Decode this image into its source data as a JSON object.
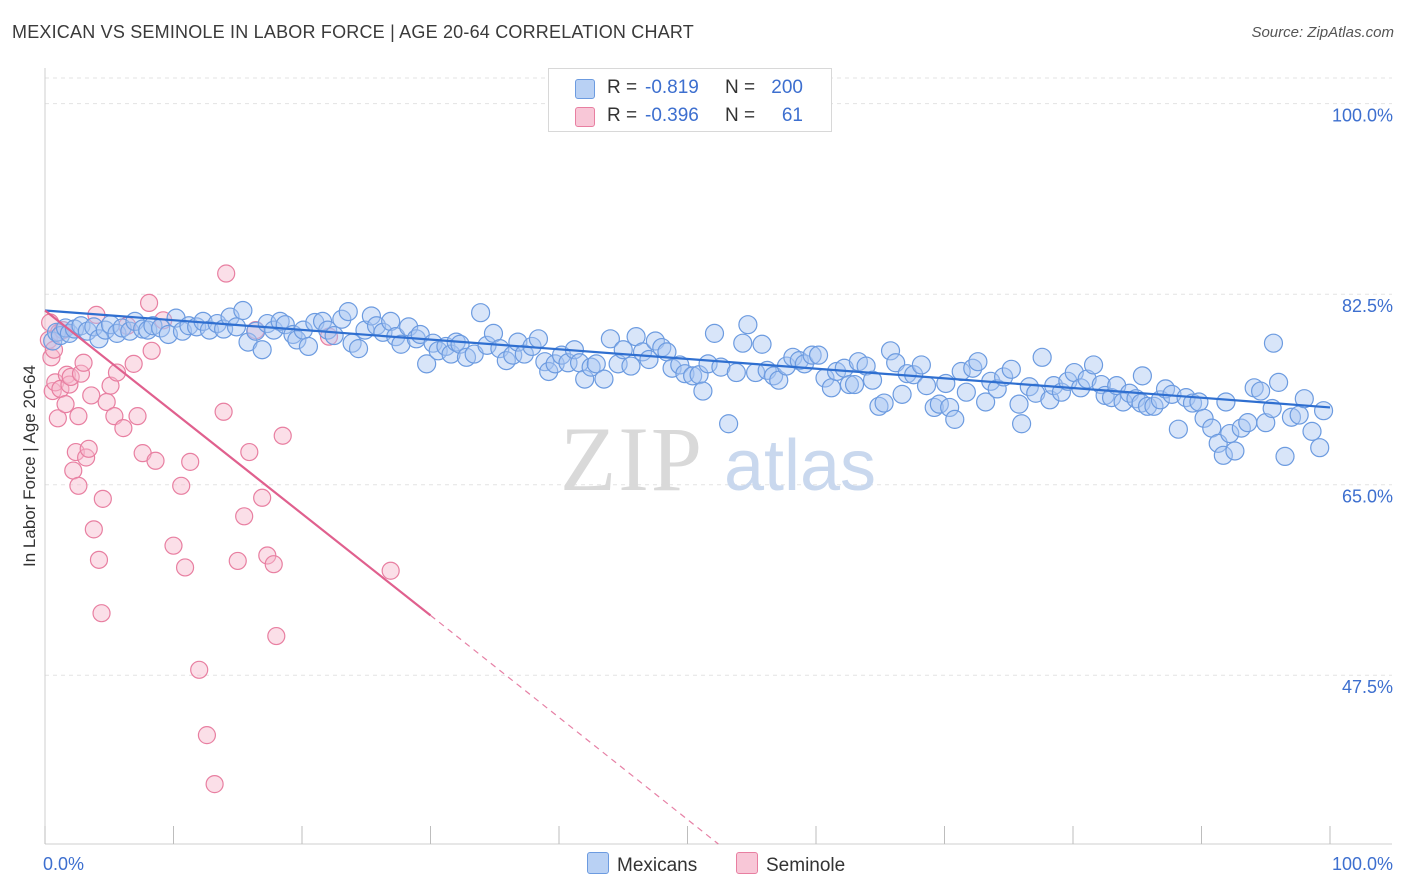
{
  "header": {
    "title": "MEXICAN VS SEMINOLE IN LABOR FORCE | AGE 20-64 CORRELATION CHART",
    "source": "Source: ZipAtlas.com"
  },
  "watermark": {
    "zip": "ZIP",
    "atlas": "atlas"
  },
  "legend_top": {
    "rows": [
      {
        "r_label": "R =",
        "r_value": "-0.819",
        "n_label": "N =",
        "n_value": "200"
      },
      {
        "r_label": "R =",
        "r_value": "-0.396",
        "n_label": "N =",
        "n_value": "61"
      }
    ]
  },
  "legend_bottom": {
    "items": [
      {
        "label": "Mexicans"
      },
      {
        "label": "Seminole"
      }
    ]
  },
  "colors": {
    "mexicans_fill": "#a9c6f2",
    "mexicans_stroke": "#6c9be0",
    "mexicans_line": "#2f6fd0",
    "seminole_fill": "#f6b7cb",
    "seminole_stroke": "#e87fa1",
    "seminole_line": "#e0608e",
    "tick_label": "#3d6fcf",
    "grid": "#e3e3e3"
  },
  "chart_data": {
    "type": "scatter",
    "title": "MEXICAN VS SEMINOLE IN LABOR FORCE | AGE 20-64 CORRELATION CHART",
    "xlabel": "",
    "ylabel": "In Labor Force | Age 20-64",
    "xlim": [
      0,
      100
    ],
    "ylim": [
      32,
      103
    ],
    "x_tick_labels": [
      "0.0%",
      "100.0%"
    ],
    "y_ticks": [
      47.5,
      65.0,
      82.5,
      100.0
    ],
    "y_tick_labels": [
      "47.5%",
      "65.0%",
      "82.5%",
      "100.0%"
    ],
    "grid": true,
    "legend_position": "top-center",
    "series": [
      {
        "name": "Mexicans",
        "r": -0.819,
        "n": 200,
        "trend": {
          "x": [
            0,
            100
          ],
          "y": [
            81.0,
            72.1
          ]
        },
        "points": [
          [
            0.6,
            78.2
          ],
          [
            0.9,
            79.0
          ],
          [
            1.2,
            78.7
          ],
          [
            1.6,
            79.4
          ],
          [
            1.9,
            78.9
          ],
          [
            2.3,
            79.3
          ],
          [
            2.8,
            79.6
          ],
          [
            3.3,
            79.1
          ],
          [
            3.8,
            79.5
          ],
          [
            4.2,
            78.4
          ],
          [
            4.7,
            79.2
          ],
          [
            5.1,
            79.7
          ],
          [
            5.6,
            78.9
          ],
          [
            6.0,
            79.4
          ],
          [
            6.6,
            79.1
          ],
          [
            7.0,
            80.0
          ],
          [
            7.6,
            79.3
          ],
          [
            8.0,
            79.2
          ],
          [
            8.4,
            79.6
          ],
          [
            9.0,
            79.4
          ],
          [
            9.6,
            78.8
          ],
          [
            10.2,
            80.3
          ],
          [
            10.7,
            79.1
          ],
          [
            11.2,
            79.6
          ],
          [
            11.8,
            79.5
          ],
          [
            12.3,
            80.0
          ],
          [
            12.8,
            79.2
          ],
          [
            13.4,
            79.8
          ],
          [
            13.9,
            79.3
          ],
          [
            14.4,
            80.4
          ],
          [
            14.9,
            79.5
          ],
          [
            15.4,
            81.0
          ],
          [
            15.8,
            78.1
          ],
          [
            16.4,
            79.1
          ],
          [
            16.9,
            77.4
          ],
          [
            17.3,
            79.8
          ],
          [
            17.8,
            79.2
          ],
          [
            18.3,
            80.0
          ],
          [
            18.7,
            79.7
          ],
          [
            19.3,
            78.8
          ],
          [
            19.6,
            78.3
          ],
          [
            20.1,
            79.2
          ],
          [
            20.5,
            77.7
          ],
          [
            21.0,
            79.9
          ],
          [
            21.6,
            80.0
          ],
          [
            22.0,
            79.2
          ],
          [
            22.5,
            78.7
          ],
          [
            23.1,
            80.2
          ],
          [
            23.6,
            80.9
          ],
          [
            23.9,
            78.0
          ],
          [
            24.4,
            77.5
          ],
          [
            24.9,
            79.2
          ],
          [
            25.4,
            80.5
          ],
          [
            25.8,
            79.6
          ],
          [
            26.3,
            79.0
          ],
          [
            26.9,
            80.0
          ],
          [
            27.3,
            78.6
          ],
          [
            27.7,
            77.9
          ],
          [
            28.3,
            79.5
          ],
          [
            28.9,
            78.4
          ],
          [
            29.2,
            78.8
          ],
          [
            29.7,
            76.1
          ],
          [
            30.2,
            78.0
          ],
          [
            30.6,
            77.3
          ],
          [
            31.2,
            77.7
          ],
          [
            31.6,
            77.0
          ],
          [
            32.0,
            78.1
          ],
          [
            32.3,
            77.9
          ],
          [
            32.8,
            76.7
          ],
          [
            33.4,
            77.0
          ],
          [
            33.9,
            80.8
          ],
          [
            34.4,
            77.8
          ],
          [
            34.9,
            78.9
          ],
          [
            35.4,
            77.5
          ],
          [
            35.9,
            76.4
          ],
          [
            36.4,
            76.9
          ],
          [
            36.8,
            78.1
          ],
          [
            37.3,
            77.0
          ],
          [
            37.9,
            77.7
          ],
          [
            38.4,
            78.4
          ],
          [
            38.9,
            76.3
          ],
          [
            39.2,
            75.4
          ],
          [
            39.7,
            76.1
          ],
          [
            40.2,
            76.9
          ],
          [
            40.7,
            76.2
          ],
          [
            41.2,
            77.4
          ],
          [
            41.6,
            76.2
          ],
          [
            42.0,
            74.7
          ],
          [
            42.5,
            75.8
          ],
          [
            42.9,
            76.1
          ],
          [
            43.5,
            74.7
          ],
          [
            44.0,
            78.4
          ],
          [
            44.6,
            76.1
          ],
          [
            45.0,
            77.4
          ],
          [
            45.6,
            75.9
          ],
          [
            46.0,
            78.6
          ],
          [
            46.5,
            77.2
          ],
          [
            47.0,
            76.5
          ],
          [
            47.5,
            78.2
          ],
          [
            48.0,
            77.6
          ],
          [
            48.4,
            77.2
          ],
          [
            48.8,
            75.7
          ],
          [
            49.4,
            76.0
          ],
          [
            49.8,
            75.2
          ],
          [
            50.4,
            75.0
          ],
          [
            50.9,
            75.1
          ],
          [
            51.2,
            73.6
          ],
          [
            51.6,
            76.1
          ],
          [
            52.1,
            78.9
          ],
          [
            52.6,
            75.8
          ],
          [
            53.2,
            70.6
          ],
          [
            53.8,
            75.3
          ],
          [
            54.3,
            78.0
          ],
          [
            54.7,
            79.7
          ],
          [
            55.3,
            75.3
          ],
          [
            55.8,
            77.9
          ],
          [
            56.2,
            75.5
          ],
          [
            56.7,
            75.0
          ],
          [
            57.1,
            74.6
          ],
          [
            57.7,
            75.9
          ],
          [
            58.2,
            76.7
          ],
          [
            58.7,
            76.4
          ],
          [
            59.1,
            76.1
          ],
          [
            59.7,
            76.9
          ],
          [
            60.2,
            76.9
          ],
          [
            60.7,
            74.8
          ],
          [
            61.2,
            73.9
          ],
          [
            61.6,
            75.4
          ],
          [
            62.2,
            75.7
          ],
          [
            62.6,
            74.2
          ],
          [
            63.0,
            74.2
          ],
          [
            63.3,
            76.3
          ],
          [
            63.9,
            75.9
          ],
          [
            64.4,
            74.6
          ],
          [
            64.9,
            72.2
          ],
          [
            65.3,
            72.5
          ],
          [
            65.8,
            77.3
          ],
          [
            66.2,
            76.2
          ],
          [
            66.7,
            73.3
          ],
          [
            67.1,
            75.2
          ],
          [
            67.6,
            75.1
          ],
          [
            68.2,
            76.0
          ],
          [
            68.6,
            74.1
          ],
          [
            69.2,
            72.1
          ],
          [
            69.6,
            72.4
          ],
          [
            70.1,
            74.3
          ],
          [
            70.4,
            72.1
          ],
          [
            70.8,
            71.0
          ],
          [
            71.3,
            75.4
          ],
          [
            71.7,
            73.5
          ],
          [
            72.2,
            75.7
          ],
          [
            72.6,
            76.3
          ],
          [
            73.2,
            72.6
          ],
          [
            73.6,
            74.5
          ],
          [
            74.1,
            73.8
          ],
          [
            74.6,
            74.9
          ],
          [
            75.2,
            75.6
          ],
          [
            75.8,
            72.4
          ],
          [
            76.0,
            70.6
          ],
          [
            76.6,
            74.0
          ],
          [
            77.1,
            73.4
          ],
          [
            77.6,
            76.7
          ],
          [
            78.2,
            72.8
          ],
          [
            78.5,
            74.1
          ],
          [
            79.1,
            73.5
          ],
          [
            79.6,
            74.5
          ],
          [
            80.1,
            75.3
          ],
          [
            80.6,
            73.9
          ],
          [
            81.1,
            74.7
          ],
          [
            81.6,
            76.0
          ],
          [
            82.2,
            74.2
          ],
          [
            82.5,
            73.2
          ],
          [
            83.0,
            73.0
          ],
          [
            83.4,
            74.1
          ],
          [
            83.9,
            72.6
          ],
          [
            84.4,
            73.4
          ],
          [
            84.9,
            72.9
          ],
          [
            85.3,
            72.5
          ],
          [
            85.8,
            72.2
          ],
          [
            86.3,
            72.2
          ],
          [
            86.8,
            72.8
          ],
          [
            87.2,
            73.8
          ],
          [
            87.7,
            73.3
          ],
          [
            88.2,
            70.1
          ],
          [
            88.8,
            73.0
          ],
          [
            89.3,
            72.5
          ],
          [
            89.8,
            72.6
          ],
          [
            90.2,
            71.1
          ],
          [
            90.8,
            70.2
          ],
          [
            91.3,
            68.8
          ],
          [
            91.7,
            67.7
          ],
          [
            92.2,
            69.7
          ],
          [
            92.6,
            68.1
          ],
          [
            93.1,
            70.2
          ],
          [
            93.6,
            70.7
          ],
          [
            94.1,
            73.9
          ],
          [
            94.6,
            73.6
          ],
          [
            95.0,
            70.7
          ],
          [
            95.5,
            72.0
          ],
          [
            96.0,
            74.4
          ],
          [
            96.5,
            67.6
          ],
          [
            97.0,
            71.2
          ],
          [
            97.6,
            71.4
          ],
          [
            98.0,
            72.9
          ],
          [
            98.6,
            69.9
          ],
          [
            99.2,
            68.4
          ],
          [
            99.5,
            71.8
          ],
          [
            85.4,
            75.0
          ],
          [
            91.9,
            72.6
          ],
          [
            95.6,
            78.0
          ]
        ]
      },
      {
        "name": "Seminole",
        "r": -0.396,
        "n": 61,
        "trend": {
          "x": [
            0,
            30
          ],
          "y": [
            81.0,
            53.0
          ]
        },
        "trend_dashed": {
          "x": [
            30,
            62
          ],
          "y": [
            53.0,
            23.0
          ]
        },
        "points": [
          [
            0.3,
            78.3
          ],
          [
            0.4,
            79.9
          ],
          [
            0.5,
            76.7
          ],
          [
            0.6,
            73.6
          ],
          [
            0.7,
            77.4
          ],
          [
            0.8,
            74.4
          ],
          [
            1.0,
            71.1
          ],
          [
            1.1,
            79.0
          ],
          [
            1.2,
            73.8
          ],
          [
            1.4,
            79.2
          ],
          [
            1.6,
            72.4
          ],
          [
            1.7,
            75.1
          ],
          [
            1.9,
            74.2
          ],
          [
            2.0,
            74.9
          ],
          [
            2.2,
            66.3
          ],
          [
            2.4,
            68.0
          ],
          [
            2.6,
            71.3
          ],
          [
            2.6,
            64.9
          ],
          [
            2.8,
            75.2
          ],
          [
            3.0,
            76.2
          ],
          [
            3.2,
            67.5
          ],
          [
            3.4,
            68.3
          ],
          [
            3.6,
            73.2
          ],
          [
            3.8,
            60.9
          ],
          [
            4.0,
            80.6
          ],
          [
            4.2,
            58.1
          ],
          [
            4.4,
            53.2
          ],
          [
            4.5,
            63.7
          ],
          [
            4.8,
            72.6
          ],
          [
            5.1,
            74.1
          ],
          [
            5.4,
            71.3
          ],
          [
            5.6,
            75.3
          ],
          [
            6.1,
            70.2
          ],
          [
            6.4,
            79.6
          ],
          [
            6.9,
            76.1
          ],
          [
            7.2,
            71.3
          ],
          [
            7.6,
            67.9
          ],
          [
            8.1,
            81.7
          ],
          [
            8.3,
            77.3
          ],
          [
            8.6,
            67.2
          ],
          [
            9.2,
            80.1
          ],
          [
            10.0,
            59.4
          ],
          [
            10.6,
            64.9
          ],
          [
            10.9,
            57.4
          ],
          [
            11.3,
            67.1
          ],
          [
            12.0,
            48.0
          ],
          [
            12.6,
            42.0
          ],
          [
            13.2,
            37.5
          ],
          [
            13.9,
            71.7
          ],
          [
            14.1,
            84.4
          ],
          [
            15.0,
            58.0
          ],
          [
            15.5,
            62.1
          ],
          [
            15.9,
            68.0
          ],
          [
            16.4,
            79.2
          ],
          [
            16.9,
            63.8
          ],
          [
            17.3,
            58.5
          ],
          [
            17.8,
            57.7
          ],
          [
            18.0,
            51.1
          ],
          [
            18.5,
            69.5
          ],
          [
            22.1,
            78.6
          ],
          [
            26.9,
            57.1
          ]
        ]
      }
    ]
  }
}
